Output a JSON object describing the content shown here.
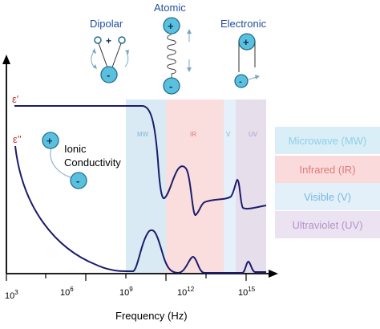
{
  "title_labels": {
    "dipolar": "Dipolar",
    "atomic": "Atomic",
    "electronic": "Electronic"
  },
  "curves": {
    "eps_prime": "ε'",
    "eps_double_prime": "ε''"
  },
  "ionic": {
    "label_line1": "Ionic",
    "label_line2": "Conductivity"
  },
  "charges": {
    "plus": "+",
    "minus": "-"
  },
  "axis": {
    "xlabel": "Frequency (Hz)",
    "ticks": [
      {
        "base": "10",
        "exp": "3"
      },
      {
        "base": "10",
        "exp": "6"
      },
      {
        "base": "10",
        "exp": "9"
      },
      {
        "base": "10",
        "exp": "12"
      },
      {
        "base": "10",
        "exp": "15"
      }
    ]
  },
  "bands": {
    "mw": "MW",
    "ir": "IR",
    "v": "V",
    "uv": "UV"
  },
  "legend": [
    {
      "label": "Microwave (MW)",
      "color": "#8fd0e6",
      "bg": "#d9eef7"
    },
    {
      "label": "Infrared (IR)",
      "color": "#e07a7a",
      "bg": "#fadada"
    },
    {
      "label": "Visible (V)",
      "color": "#7ab8e0",
      "bg": "#e3f0fa"
    },
    {
      "label": "Ultraviolet (UV)",
      "color": "#b493c9",
      "bg": "#ece3f2"
    }
  ],
  "colors": {
    "curve": "#1c1c6b",
    "accent_red": "#c0392b",
    "title_blue": "#1f4e9c",
    "charge_fill": "#5bc0de"
  }
}
